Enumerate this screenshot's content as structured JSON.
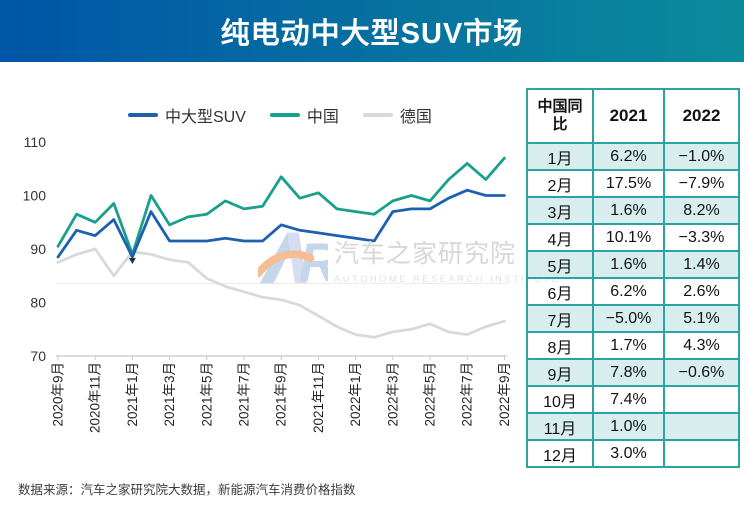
{
  "header": {
    "title": "纯电动中大型SUV市场"
  },
  "colors": {
    "banner_gradient_left": "#0055a7",
    "banner_gradient_right": "#0c8b9b",
    "table_border": "#2ba3a3",
    "table_alt_row": "#d8edee",
    "axis": "#c6c6c6"
  },
  "chart_data": {
    "type": "line",
    "x": [
      "2020年9月",
      "2020年10月",
      "2020年11月",
      "2020年12月",
      "2021年1月",
      "2021年2月",
      "2021年3月",
      "2021年4月",
      "2021年5月",
      "2021年6月",
      "2021年7月",
      "2021年8月",
      "2021年9月",
      "2021年10月",
      "2021年11月",
      "2021年12月",
      "2022年1月",
      "2022年2月",
      "2022年3月",
      "2022年4月",
      "2022年5月",
      "2022年6月",
      "2022年7月",
      "2022年8月",
      "2022年9月"
    ],
    "x_tick_labels": [
      "2020年9月",
      "2020年11月",
      "2021年1月",
      "2021年3月",
      "2021年5月",
      "2021年7月",
      "2021年9月",
      "2021年11月",
      "2022年1月",
      "2022年3月",
      "2022年5月",
      "2022年7月",
      "2022年9月"
    ],
    "yticks": [
      70,
      80,
      90,
      100,
      110
    ],
    "ylim": [
      70,
      110
    ],
    "legend_position": "top",
    "grid": "off",
    "series": [
      {
        "name": "中大型SUV",
        "color": "#1d60ae",
        "values": [
          88.5,
          93.5,
          92.5,
          95.5,
          88.5,
          97,
          91.5,
          91.5,
          91.5,
          92,
          91.5,
          91.5,
          94.5,
          93.5,
          93,
          92.5,
          92,
          91.5,
          97,
          97.5,
          97.5,
          99.5,
          101,
          100,
          100
        ]
      },
      {
        "name": "中国",
        "color": "#19a08c",
        "values": [
          90.5,
          96.5,
          95,
          98.5,
          89,
          100,
          94.5,
          96,
          96.5,
          99,
          97.5,
          98,
          103.5,
          99.5,
          100.5,
          97.5,
          97,
          96.5,
          99,
          100,
          99,
          103,
          106,
          103,
          107
        ]
      },
      {
        "name": "德国",
        "color": "#d9d9d9",
        "values": [
          87.5,
          89,
          90,
          85,
          89.5,
          89,
          88,
          87.5,
          84.5,
          83,
          82,
          81,
          80.5,
          79.5,
          77.5,
          75.5,
          74,
          73.5,
          74.5,
          75,
          76,
          74.5,
          74,
          75.5,
          76.5
        ]
      }
    ],
    "marker": {
      "series_index": 0,
      "point_index": 4
    }
  },
  "watermark": {
    "logo": "AR",
    "line1": "汽车之家研究院",
    "line2": "AUTOHOME RESEARCH INSTITUTE"
  },
  "table": {
    "headers": [
      "中国同比",
      "2021",
      "2022"
    ],
    "rows": [
      [
        "1月",
        "6.2%",
        "−1.0%"
      ],
      [
        "2月",
        "17.5%",
        "−7.9%"
      ],
      [
        "3月",
        "1.6%",
        "8.2%"
      ],
      [
        "4月",
        "10.1%",
        "−3.3%"
      ],
      [
        "5月",
        "1.6%",
        "1.4%"
      ],
      [
        "6月",
        "6.2%",
        "2.6%"
      ],
      [
        "7月",
        "−5.0%",
        "5.1%"
      ],
      [
        "8月",
        "1.7%",
        "4.3%"
      ],
      [
        "9月",
        "7.8%",
        "−0.6%"
      ],
      [
        "10月",
        "7.4%",
        ""
      ],
      [
        "11月",
        "1.0%",
        ""
      ],
      [
        "12月",
        "3.0%",
        ""
      ]
    ]
  },
  "source": "数据来源：汽车之家研究院大数据，新能源汽车消费价格指数"
}
